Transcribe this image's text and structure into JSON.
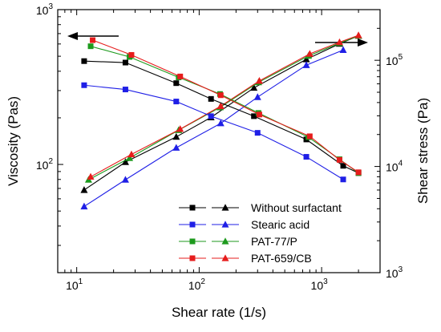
{
  "chart_data": {
    "type": "line",
    "xlabel": "Shear rate (1/s)",
    "ylabel_left": "Viscosity (Pas)",
    "ylabel_right": "Shear stress (Pa)",
    "x_scale": "log",
    "y_left_scale": "log",
    "y_right_scale": "log",
    "xlim": [
      7,
      3000
    ],
    "ylim_left": [
      20,
      1000
    ],
    "ylim_right": [
      1000,
      300000
    ],
    "x_ticks": [
      {
        "value": 10,
        "base": "10",
        "exp": "1"
      },
      {
        "value": 100,
        "base": "10",
        "exp": "2"
      },
      {
        "value": 1000,
        "base": "10",
        "exp": "3"
      }
    ],
    "y_left_ticks": [
      {
        "value": 100,
        "base": "10",
        "exp": "2"
      },
      {
        "value": 1000,
        "base": "10",
        "exp": "3"
      }
    ],
    "y_right_ticks": [
      {
        "value": 1000,
        "base": "10",
        "exp": "3"
      },
      {
        "value": 10000,
        "base": "10",
        "exp": "4"
      },
      {
        "value": 100000,
        "base": "10",
        "exp": "5"
      }
    ],
    "grid": false,
    "legend_position": "bottom-right",
    "viscosity_series": [
      {
        "name": "Without surfactant",
        "color": "#000000",
        "marker": "square",
        "x": [
          11.5,
          25,
          65,
          125,
          280,
          750,
          1500,
          2000
        ],
        "y": [
          465,
          455,
          335,
          265,
          205,
          145,
          98,
          88
        ]
      },
      {
        "name": "Stearic acid",
        "color": "#1f1fe6",
        "marker": "square",
        "x": [
          11.5,
          25,
          65,
          125,
          300,
          750,
          1500
        ],
        "y": [
          325,
          305,
          255,
          205,
          160,
          112,
          80
        ]
      },
      {
        "name": "PAT-77/P",
        "color": "#1d9a1d",
        "marker": "square",
        "x": [
          13,
          27,
          68,
          148,
          305,
          780,
          1400,
          2000
        ],
        "y": [
          580,
          495,
          365,
          285,
          215,
          150,
          108,
          88
        ]
      },
      {
        "name": "PAT-659/CB",
        "color": "#e61c1c",
        "marker": "square",
        "x": [
          13.5,
          28,
          70,
          150,
          310,
          800,
          1400,
          2000
        ],
        "y": [
          635,
          510,
          370,
          280,
          210,
          152,
          107,
          89
        ]
      }
    ],
    "stress_series": [
      {
        "name": "Without surfactant",
        "color": "#000000",
        "marker": "triangle",
        "x": [
          11.5,
          25,
          65,
          125,
          280,
          750,
          1400,
          2000
        ],
        "y": [
          6000,
          11000,
          19000,
          29000,
          55000,
          102000,
          143000,
          170000
        ]
      },
      {
        "name": "Stearic acid",
        "color": "#1f1fe6",
        "marker": "triangle",
        "x": [
          11.5,
          25,
          65,
          150,
          300,
          750,
          1500
        ],
        "y": [
          4200,
          7500,
          15000,
          25500,
          45000,
          90000,
          125000
        ]
      },
      {
        "name": "PAT-77/P",
        "color": "#1d9a1d",
        "marker": "triangle",
        "x": [
          12.5,
          27,
          68,
          148,
          305,
          780,
          1400,
          2000
        ],
        "y": [
          7500,
          12000,
          22000,
          36000,
          62000,
          110000,
          145000,
          170000
        ]
      },
      {
        "name": "PAT-659/CB",
        "color": "#e61c1c",
        "marker": "triangle",
        "x": [
          13,
          28,
          70,
          150,
          310,
          800,
          1400,
          2000
        ],
        "y": [
          8000,
          13000,
          22500,
          37000,
          64000,
          115000,
          148000,
          172000
        ]
      }
    ],
    "legend": [
      {
        "label": "Without surfactant",
        "color": "#000000"
      },
      {
        "label": "Stearic acid",
        "color": "#1f1fe6"
      },
      {
        "label": "PAT-77/P",
        "color": "#1d9a1d"
      },
      {
        "label": "PAT-659/CB",
        "color": "#e61c1c"
      }
    ]
  }
}
